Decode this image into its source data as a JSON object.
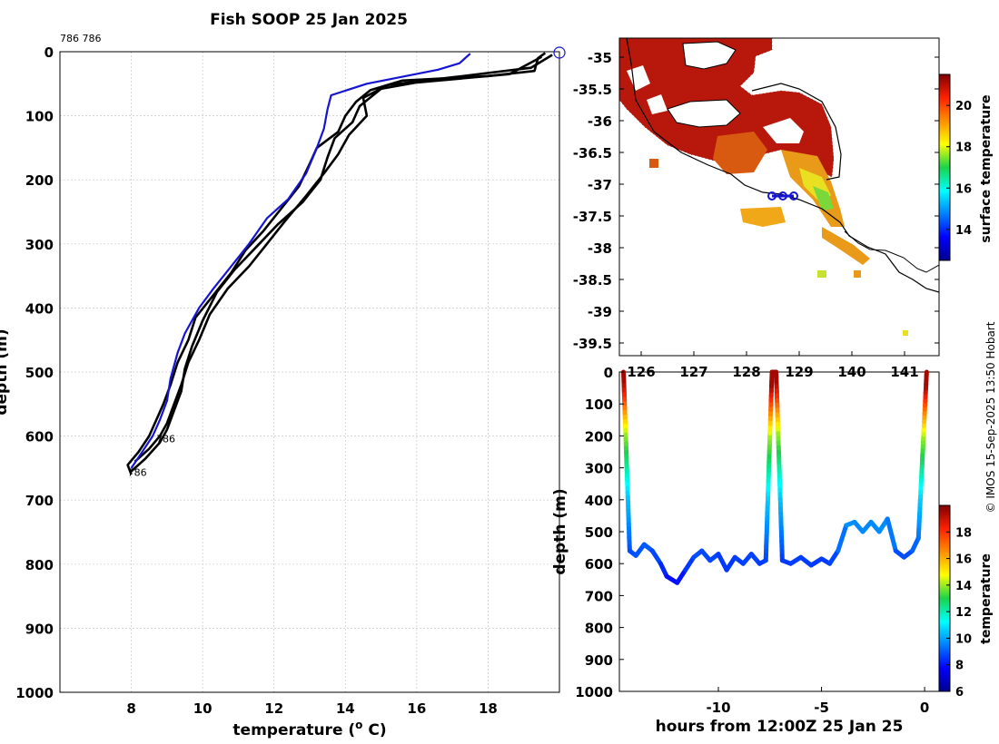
{
  "title": "Fish SOOP 25 Jan 2025",
  "credit": "© IMOS 15-Sep-2025 13:50 Hobart",
  "colors": {
    "profile_current": "#1414d2",
    "profile_previous": "#000000",
    "coastline": "#000000"
  },
  "chart_data": [
    {
      "id": "profile",
      "type": "line",
      "xlabel": "temperature (o C)",
      "xlabel_main": "temperature (",
      "xlabel_sup": "o",
      "xlabel_end": " C)",
      "ylabel": "depth (m)",
      "xlim": [
        6,
        20
      ],
      "ylim": [
        0,
        1000
      ],
      "xticks": [
        8,
        10,
        12,
        14,
        16,
        18
      ],
      "yticks": [
        0,
        100,
        200,
        300,
        400,
        500,
        600,
        700,
        800,
        900,
        1000
      ],
      "top_annotation": "786 786",
      "annotations": [
        {
          "text": "786",
          "x": 8.7,
          "y": 610
        },
        {
          "text": "786",
          "x": 7.9,
          "y": 662
        }
      ],
      "series": [
        {
          "name": "current",
          "color": "#1414d2",
          "points": [
            [
              17.5,
              3
            ],
            [
              17.2,
              18
            ],
            [
              16.6,
              28
            ],
            [
              14.6,
              50
            ],
            [
              13.6,
              68
            ],
            [
              13.5,
              90
            ],
            [
              13.4,
              120
            ],
            [
              13.2,
              150
            ],
            [
              12.9,
              190
            ],
            [
              12.4,
              230
            ],
            [
              11.8,
              260
            ],
            [
              11.3,
              300
            ],
            [
              10.8,
              335
            ],
            [
              10.3,
              370
            ],
            [
              9.9,
              400
            ],
            [
              9.5,
              440
            ],
            [
              9.3,
              470
            ],
            [
              9.1,
              510
            ],
            [
              9.0,
              545
            ],
            [
              8.8,
              575
            ],
            [
              8.6,
              600
            ],
            [
              8.3,
              625
            ],
            [
              8.0,
              650
            ]
          ]
        },
        {
          "name": "previous-1",
          "color": "#000000",
          "points": [
            [
              19.6,
              2
            ],
            [
              19.4,
              10
            ],
            [
              19.3,
              30
            ],
            [
              18.0,
              38
            ],
            [
              15.6,
              45
            ],
            [
              14.7,
              60
            ],
            [
              14.3,
              78
            ],
            [
              14.0,
              100
            ],
            [
              13.8,
              125
            ],
            [
              13.2,
              150
            ],
            [
              13.0,
              175
            ],
            [
              12.7,
              210
            ],
            [
              12.2,
              245
            ],
            [
              11.7,
              280
            ],
            [
              11.2,
              310
            ],
            [
              10.8,
              345
            ],
            [
              10.3,
              380
            ],
            [
              9.8,
              415
            ],
            [
              9.6,
              450
            ],
            [
              9.3,
              485
            ],
            [
              9.1,
              520
            ],
            [
              8.9,
              550
            ],
            [
              8.7,
              575
            ],
            [
              8.5,
              600
            ],
            [
              8.2,
              625
            ],
            [
              7.9,
              645
            ],
            [
              8.0,
              660
            ]
          ]
        },
        {
          "name": "previous-2",
          "color": "#000000",
          "points": [
            [
              19.8,
              5
            ],
            [
              19.2,
              25
            ],
            [
              17.0,
              40
            ],
            [
              15.2,
              52
            ],
            [
              14.5,
              72
            ],
            [
              14.6,
              100
            ],
            [
              14.1,
              130
            ],
            [
              13.8,
              160
            ],
            [
              13.4,
              190
            ],
            [
              12.9,
              225
            ],
            [
              12.3,
              265
            ],
            [
              11.8,
              300
            ],
            [
              11.3,
              335
            ],
            [
              10.7,
              370
            ],
            [
              10.2,
              410
            ],
            [
              9.9,
              450
            ],
            [
              9.6,
              485
            ],
            [
              9.4,
              520
            ],
            [
              9.2,
              550
            ],
            [
              9.0,
              580
            ],
            [
              8.8,
              600
            ],
            [
              8.5,
              620
            ],
            [
              8.1,
              640
            ]
          ]
        },
        {
          "name": "previous-3",
          "color": "#000000",
          "points": [
            [
              19.5,
              8
            ],
            [
              18.6,
              35
            ],
            [
              16.0,
              48
            ],
            [
              15.0,
              58
            ],
            [
              14.4,
              85
            ],
            [
              14.2,
              110
            ],
            [
              13.7,
              135
            ],
            [
              13.5,
              165
            ],
            [
              13.3,
              200
            ],
            [
              12.8,
              235
            ],
            [
              12.1,
              270
            ],
            [
              11.5,
              305
            ],
            [
              10.9,
              340
            ],
            [
              10.4,
              375
            ],
            [
              10.0,
              420
            ],
            [
              9.7,
              460
            ],
            [
              9.5,
              495
            ],
            [
              9.4,
              530
            ],
            [
              9.2,
              560
            ],
            [
              9.0,
              590
            ],
            [
              8.8,
              610
            ],
            [
              8.4,
              635
            ],
            [
              8.0,
              655
            ]
          ]
        }
      ]
    },
    {
      "id": "sst-map",
      "type": "heatmap",
      "colorbar_label": "surface temperature",
      "xticks": [
        126,
        127,
        128,
        129,
        140,
        141
      ],
      "yticks": [
        -35,
        -35.5,
        -36,
        -36.5,
        -37,
        -37.5,
        -38,
        -38.5,
        -39,
        -39.5
      ],
      "lon_range": [
        125.6,
        141.8
      ],
      "lat_range": [
        -34.7,
        -39.7
      ],
      "colorbar_range": [
        12.5,
        21.5
      ],
      "colorbar_ticks": [
        14,
        16,
        18,
        20
      ],
      "track": [
        [
          128.6,
          -37.2
        ],
        [
          129.0,
          -37.2
        ]
      ]
    },
    {
      "id": "depth-time",
      "type": "scatter",
      "xlabel": "hours from 12:00Z 25 Jan 25",
      "ylabel": "depth (m)",
      "xlim": [
        -14.8,
        0.7
      ],
      "ylim": [
        0,
        1000
      ],
      "xticks": [
        -10,
        -5,
        0
      ],
      "yticks": [
        0,
        100,
        200,
        300,
        400,
        500,
        600,
        700,
        800,
        900,
        1000
      ],
      "colorbar_label": "temperature",
      "colorbar_range": [
        6,
        20
      ],
      "colorbar_ticks": [
        6,
        8,
        10,
        12,
        14,
        16,
        18
      ]
    }
  ]
}
